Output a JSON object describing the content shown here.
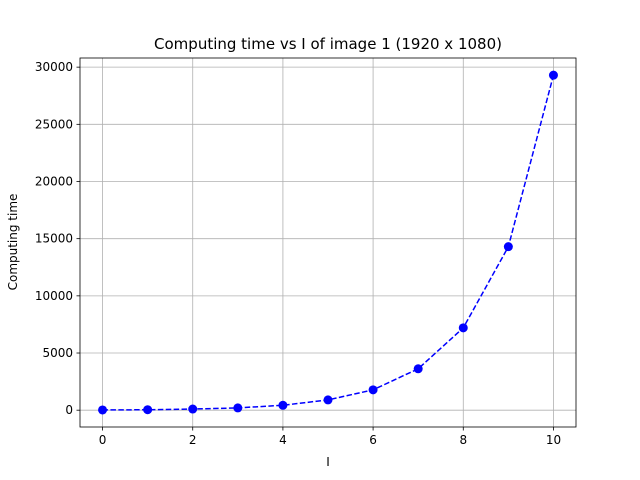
{
  "chart_data": {
    "type": "line",
    "title": "Computing time vs I of image 1 (1920 x 1080)",
    "xlabel": "I",
    "ylabel": "Computing time",
    "xlim": [
      -0.5,
      10.5
    ],
    "ylim": [
      -1470,
      30800
    ],
    "x_ticks": [
      0,
      2,
      4,
      6,
      8,
      10
    ],
    "y_ticks": [
      0,
      5000,
      10000,
      15000,
      20000,
      25000,
      30000
    ],
    "grid": true,
    "series": [
      {
        "color": "#0000ff",
        "line_style": "dashed",
        "marker": "circle",
        "x": [
          0,
          1,
          2,
          3,
          4,
          5,
          6,
          7,
          8,
          9,
          10
        ],
        "y": [
          20,
          40,
          100,
          200,
          430,
          900,
          1780,
          3620,
          7200,
          14300,
          29300
        ]
      }
    ]
  }
}
